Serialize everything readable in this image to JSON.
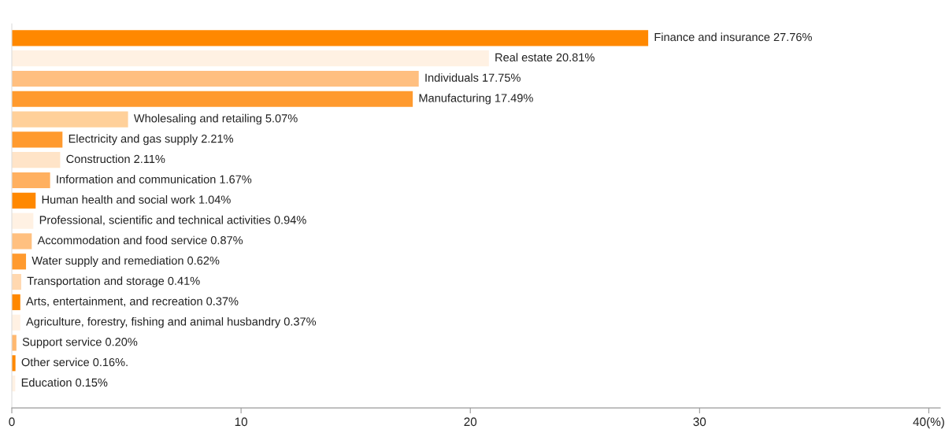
{
  "chart_data": {
    "type": "bar",
    "orientation": "horizontal",
    "categories": [
      "Finance and insurance",
      "Real estate",
      "Individuals",
      "Manufacturing",
      "Wholesaling and retailing",
      "Electricity and gas supply",
      "Construction",
      "Information and communication",
      "Human health and social work",
      "Professional, scientific and technical activities",
      "Accommodation and food service",
      "Water supply and remediation",
      "Transportation and storage",
      "Arts, entertainment, and recreation",
      "Agriculture, forestry, fishing and animal husbandry",
      "Support service",
      "Other service",
      "Education"
    ],
    "values": [
      27.76,
      20.81,
      17.75,
      17.49,
      5.07,
      2.21,
      2.11,
      1.67,
      1.04,
      0.94,
      0.87,
      0.62,
      0.41,
      0.37,
      0.37,
      0.2,
      0.16,
      0.15
    ],
    "value_labels": [
      "27.76%",
      "20.81%",
      "17.75%",
      "17.49%",
      "5.07%",
      "2.21%",
      "2.11%",
      "1.67%",
      "1.04%",
      "0.94%",
      "0.87%",
      "0.62%",
      "0.41%",
      "0.37%",
      "0.37%",
      "0.20%",
      "0.16%.",
      "0.15%"
    ],
    "colors": [
      "#ff8800",
      "#fff1e3",
      "#ffbf80",
      "#ff9a2e",
      "#ffd09a",
      "#ff9a2e",
      "#ffe4c8",
      "#ffb060",
      "#ff8800",
      "#fff1e3",
      "#ffc080",
      "#ff9a2e",
      "#ffd8b0",
      "#ff8800",
      "#fff1e3",
      "#ffb870",
      "#ff8800",
      "#fff1e3"
    ],
    "xlim": [
      0,
      40.5
    ],
    "xticks": [
      0,
      10,
      20,
      30,
      {
        "value": 40,
        "label": "40(%)"
      }
    ],
    "tick_labels": "x",
    "grid": false,
    "legend": false
  }
}
